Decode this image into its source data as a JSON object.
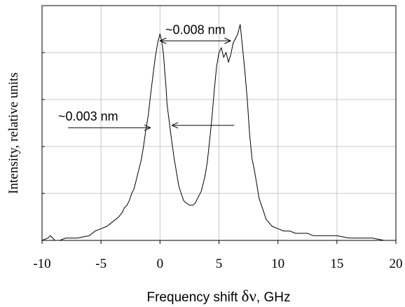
{
  "chart_data": {
    "type": "line",
    "title": "",
    "xlabel_prefix": "Frequency shift ",
    "xlabel_symbol": "δν",
    "xlabel_suffix": ", GHz",
    "ylabel": "Intensity, relative units",
    "xlim": [
      -10,
      20
    ],
    "ylim": [
      0,
      1.0
    ],
    "x_ticks": [
      -10,
      -5,
      0,
      5,
      10,
      15,
      20
    ],
    "x_tick_labels": [
      "-10",
      "-5",
      "0",
      "5",
      "10",
      "15",
      "20"
    ],
    "y_gridlines": [
      0.2,
      0.4,
      0.6,
      0.8,
      1.0
    ],
    "grid": true,
    "legend": "none",
    "series": [
      {
        "x": [
          -10,
          -9.5,
          -9.3,
          -9.1,
          -8.9,
          -8.5,
          -8.0,
          -7.0,
          -6.0,
          -5.5,
          -5.0,
          -4.5,
          -4.0,
          -3.5,
          -3.2,
          -3.0,
          -2.8,
          -2.6,
          -2.4,
          -2.2,
          -2.0,
          -1.8,
          -1.6,
          -1.4,
          -1.2,
          -1.0,
          -0.8,
          -0.6,
          -0.4,
          -0.2,
          0.0,
          0.1,
          0.2,
          0.3,
          0.4,
          0.5,
          0.6,
          0.8,
          1.0,
          1.2,
          1.4,
          1.6,
          1.8,
          2.0,
          2.2,
          2.5,
          2.8,
          3.0,
          3.2,
          3.5,
          3.8,
          4.0,
          4.2,
          4.4,
          4.6,
          4.8,
          5.0,
          5.2,
          5.4,
          5.6,
          5.8,
          6.0,
          6.2,
          6.4,
          6.6,
          6.8,
          7.0,
          7.2,
          7.4,
          7.6,
          7.8,
          8.0,
          8.2,
          8.4,
          8.6,
          8.8,
          9.0,
          9.5,
          10.0,
          10.5,
          11.0,
          11.5,
          12.0,
          12.5,
          13.0,
          13.5,
          14.0,
          15.0,
          16.0,
          16.5,
          17.0,
          18.0,
          19.0,
          20.0
        ],
        "y": [
          0.0,
          0.01,
          0.02,
          0.01,
          0.0,
          0.0,
          0.01,
          0.01,
          0.02,
          0.04,
          0.05,
          0.06,
          0.08,
          0.1,
          0.12,
          0.14,
          0.15,
          0.17,
          0.2,
          0.22,
          0.26,
          0.3,
          0.34,
          0.4,
          0.47,
          0.53,
          0.62,
          0.7,
          0.78,
          0.84,
          0.88,
          0.86,
          0.83,
          0.79,
          0.72,
          0.66,
          0.58,
          0.5,
          0.42,
          0.35,
          0.29,
          0.23,
          0.2,
          0.17,
          0.16,
          0.15,
          0.15,
          0.16,
          0.18,
          0.21,
          0.27,
          0.33,
          0.42,
          0.52,
          0.64,
          0.74,
          0.8,
          0.82,
          0.78,
          0.8,
          0.76,
          0.79,
          0.84,
          0.86,
          0.88,
          0.92,
          0.82,
          0.72,
          0.6,
          0.45,
          0.35,
          0.3,
          0.24,
          0.18,
          0.15,
          0.12,
          0.09,
          0.06,
          0.05,
          0.04,
          0.04,
          0.03,
          0.03,
          0.03,
          0.02,
          0.02,
          0.02,
          0.02,
          0.01,
          0.01,
          0.01,
          0.01,
          0.0,
          0.0
        ]
      }
    ],
    "annotations": [
      {
        "text": "~0.008 nm",
        "from_x": 0.0,
        "to_x": 6.0,
        "y": 0.85
      },
      {
        "text": "~0.003 nm",
        "from_x": -7.8,
        "to_x": -0.8,
        "y": 0.48
      },
      {
        "text": "",
        "from_x": 6.3,
        "to_x": 1.0,
        "y": 0.49
      }
    ]
  }
}
